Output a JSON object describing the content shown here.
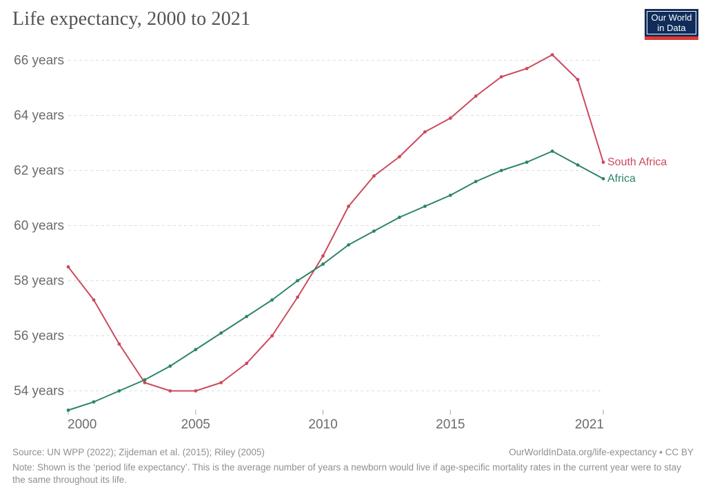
{
  "header": {
    "title": "Life expectancy, 2000 to 2021",
    "logo": {
      "line1": "Our World",
      "line2": "in Data"
    }
  },
  "chart_data": {
    "type": "line",
    "title": "Life expectancy, 2000 to 2021",
    "x": [
      2000,
      2001,
      2002,
      2003,
      2004,
      2005,
      2006,
      2007,
      2008,
      2009,
      2010,
      2011,
      2012,
      2013,
      2014,
      2015,
      2016,
      2017,
      2018,
      2019,
      2020,
      2021
    ],
    "x_ticks": [
      2000,
      2005,
      2010,
      2015,
      2021
    ],
    "y_ticks": [
      54,
      56,
      58,
      60,
      62,
      64,
      66
    ],
    "y_tick_suffix": " years",
    "ylim": [
      53.2,
      66.4
    ],
    "xlabel": "",
    "ylabel": "",
    "grid": "horizontal-dashed",
    "legend": "line-end-labels",
    "series": [
      {
        "name": "South Africa",
        "color": "#cc495c",
        "values": [
          58.5,
          57.3,
          55.7,
          54.3,
          54.0,
          54.0,
          54.3,
          55.0,
          56.0,
          57.4,
          58.9,
          60.7,
          61.8,
          62.5,
          63.4,
          63.9,
          64.7,
          65.4,
          65.7,
          66.2,
          65.3,
          62.3
        ]
      },
      {
        "name": "Africa",
        "color": "#2c8465",
        "values": [
          53.3,
          53.6,
          54.0,
          54.4,
          54.9,
          55.5,
          56.1,
          56.7,
          57.3,
          58.0,
          58.6,
          59.3,
          59.8,
          60.3,
          60.7,
          61.1,
          61.6,
          62.0,
          62.3,
          62.7,
          62.2,
          61.7
        ]
      }
    ]
  },
  "footer": {
    "source": "Source: UN WPP (2022); Zijdeman et al. (2015); Riley (2005)",
    "attribution": "OurWorldInData.org/life-expectancy • CC BY",
    "note": "Note: Shown is the ‘period life expectancy’. This is the average number of years a newborn would live if age-specific mortality rates in the current year were to stay the same throughout its life."
  },
  "colors": {
    "south_africa": "#cc495c",
    "africa": "#2c8465",
    "grid": "#dcdcdc",
    "axis_text": "#6b6b6b",
    "logo_navy": "#102d5a",
    "logo_red": "#dc3a32"
  }
}
